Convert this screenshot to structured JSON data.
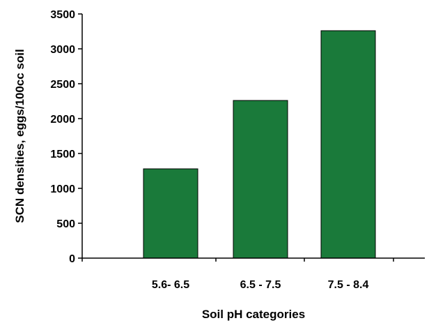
{
  "chart_data": {
    "type": "bar",
    "categories": [
      "5.6- 6.5",
      "6.5 - 7.5",
      "7.5 - 8.4"
    ],
    "values": [
      1280,
      2260,
      3260
    ],
    "xlabel": "Soil pH categories",
    "ylabel": "SCN densities, eggs/100cc soil",
    "ylim": [
      0,
      3500
    ],
    "yticks": [
      "0",
      "500",
      "1000",
      "1500",
      "2000",
      "2500",
      "3000",
      "3500"
    ],
    "grid": false,
    "legend": "none"
  },
  "colors": {
    "bar_fill": "#1a7a3a",
    "bar_stroke": "#000000",
    "axis": "#000000",
    "background": "#ffffff"
  }
}
